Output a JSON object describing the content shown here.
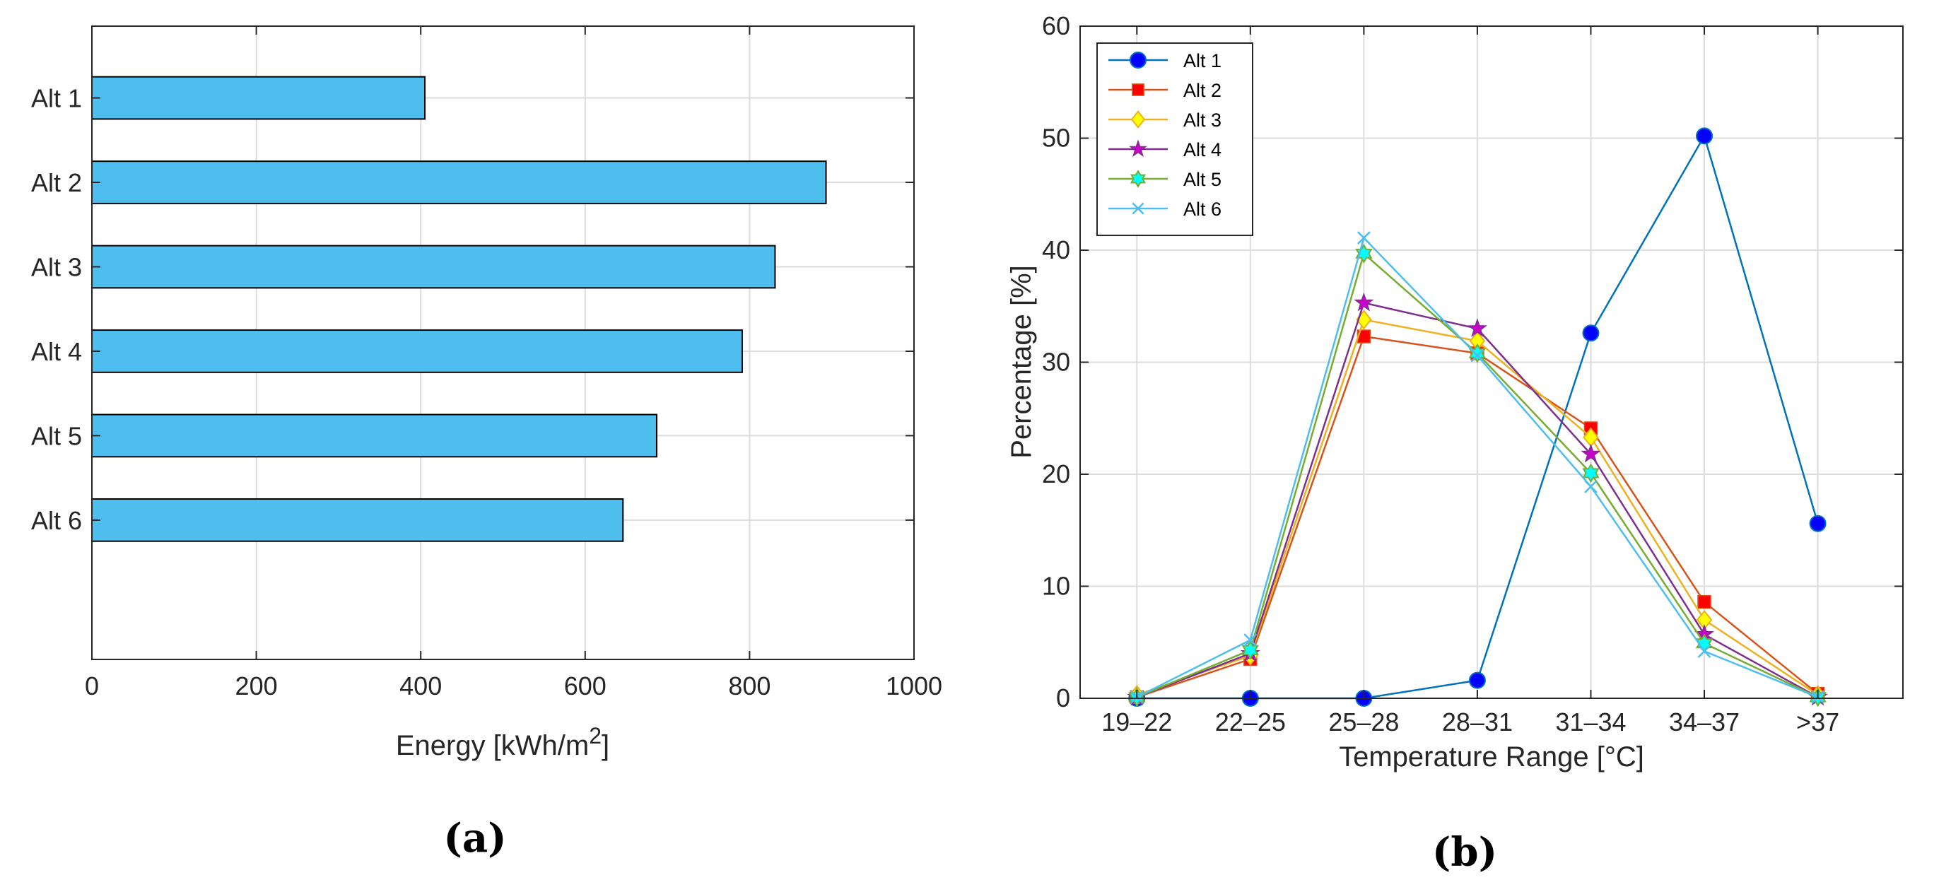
{
  "chart_data": [
    {
      "type": "bar",
      "orientation": "horizontal",
      "categories": [
        "Alt 1",
        "Alt 2",
        "Alt 3",
        "Alt 4",
        "Alt 5",
        "Alt 6"
      ],
      "values": [
        405,
        893,
        831,
        791,
        687,
        646
      ],
      "xlabel": "Energy [kWh/m",
      "xlabel_sup": "2",
      "xlabel_end": "]",
      "xlim": [
        0,
        1000
      ],
      "xticks": [
        "0",
        "200",
        "400",
        "600",
        "800",
        "1000"
      ],
      "grid": true,
      "bar_color": "#4DBEEE",
      "panel_label": "(a)"
    },
    {
      "type": "line",
      "categories": [
        "19–22",
        "22–25",
        "25–28",
        "28–31",
        "31–34",
        "34–37",
        ">37"
      ],
      "series": [
        {
          "name": "Alt 1",
          "values": [
            0,
            0,
            0,
            1.6,
            32.6,
            50.2,
            15.6
          ],
          "color": "#0072BD",
          "marker": "circle",
          "marker_fill": "#0000FF"
        },
        {
          "name": "Alt 2",
          "values": [
            0.1,
            3.5,
            32.3,
            30.8,
            24.1,
            8.6,
            0.4
          ],
          "color": "#D95319",
          "marker": "square",
          "marker_fill": "#FF0000"
        },
        {
          "name": "Alt 3",
          "values": [
            0.3,
            3.8,
            33.8,
            31.9,
            23.3,
            7.0,
            0.3
          ],
          "color": "#EDB120",
          "marker": "diamond",
          "marker_fill": "#FFFF00"
        },
        {
          "name": "Alt 4",
          "values": [
            0.1,
            4.0,
            35.3,
            33.0,
            21.8,
            5.7,
            0.1
          ],
          "color": "#7E2F8E",
          "marker": "star",
          "marker_fill": "#CC00CC"
        },
        {
          "name": "Alt 5",
          "values": [
            0.1,
            4.3,
            39.7,
            30.8,
            20.1,
            4.9,
            0.1
          ],
          "color": "#77AC30",
          "marker": "hexagram",
          "marker_fill": "#00FFFF"
        },
        {
          "name": "Alt 6",
          "values": [
            0.1,
            5.2,
            41.1,
            30.6,
            18.9,
            4.2,
            0.1
          ],
          "color": "#4DBEEE",
          "marker": "x",
          "marker_fill": "#4DBEEE"
        }
      ],
      "xlabel": "Temperature Range [°C]",
      "ylabel": "Percentage [%]",
      "ylim": [
        0,
        60
      ],
      "yticks": [
        "0",
        "10",
        "20",
        "30",
        "40",
        "50",
        "60"
      ],
      "grid": true,
      "legend": "top-left",
      "panel_label": "(b)"
    }
  ]
}
